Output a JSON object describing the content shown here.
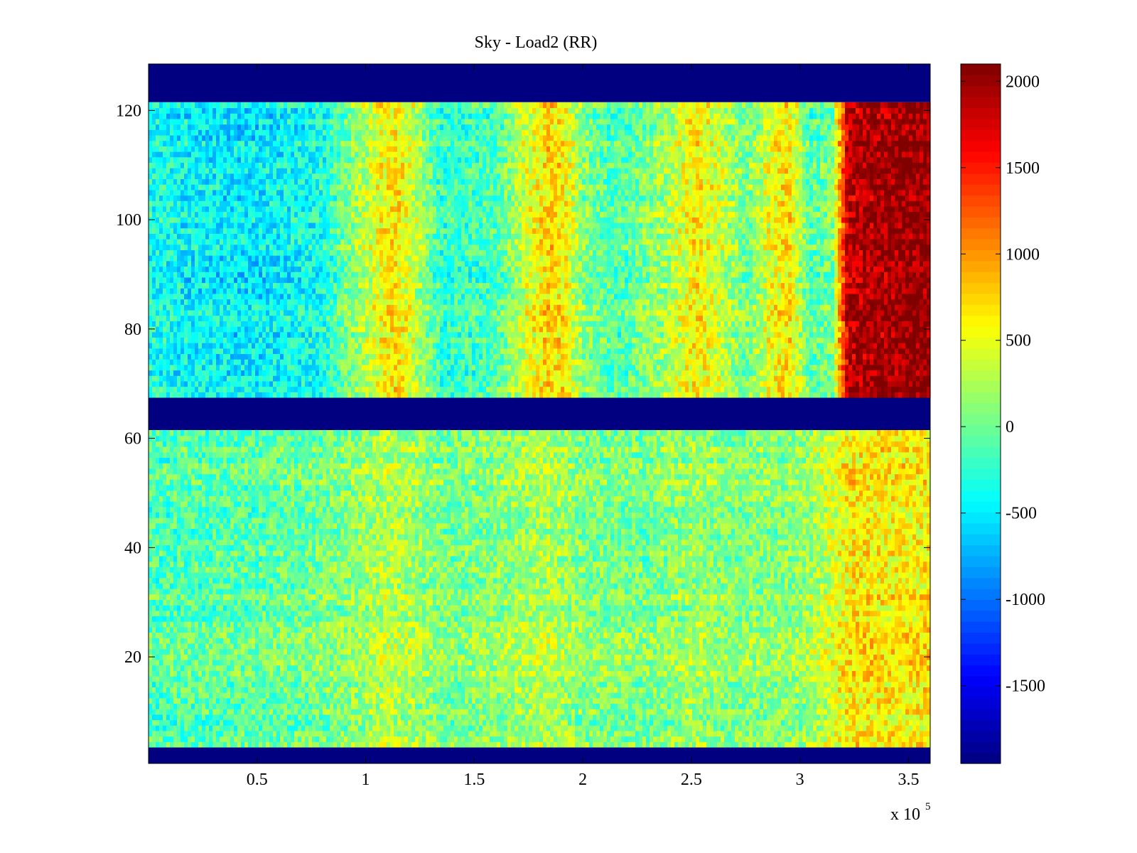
{
  "chart_data": {
    "type": "heatmap",
    "title": "Sky - Load2 (RR)",
    "xlabel": "",
    "ylabel": "",
    "x_range": [
      0,
      360000
    ],
    "y_range": [
      0.5,
      128.5
    ],
    "x_exponent_label": "x 10",
    "x_exponent_power": "5",
    "x_tick_labels": [
      "0.5",
      "1",
      "1.5",
      "2",
      "2.5",
      "3",
      "3.5"
    ],
    "x_tick_values": [
      50000,
      100000,
      150000,
      200000,
      250000,
      300000,
      350000
    ],
    "y_tick_labels": [
      "20",
      "40",
      "60",
      "80",
      "100",
      "120"
    ],
    "y_tick_values": [
      20,
      40,
      60,
      80,
      100,
      120
    ],
    "colormap": "jet",
    "color_range": [
      -1950,
      2100
    ],
    "colorbar": {
      "position": "right",
      "tick_labels": [
        "2000",
        "1500",
        "1000",
        "500",
        "0",
        "-500",
        "-1000",
        "-1500"
      ],
      "tick_values": [
        2000,
        1500,
        1000,
        500,
        0,
        -500,
        -1000,
        -1500
      ]
    },
    "masked_rows": [
      {
        "from": 121.5,
        "to": 128.5,
        "value": -1950
      },
      {
        "from": 61.5,
        "to": 67.5,
        "value": -1950
      },
      {
        "from": 0.5,
        "to": 3.5,
        "value": -1950
      }
    ],
    "bands": [
      {
        "y_from": 67.5,
        "y_to": 121.5,
        "profile_x": [
          0,
          20000,
          50000,
          80000,
          95000,
          108000,
          115000,
          122000,
          135000,
          160000,
          175000,
          185000,
          192000,
          200000,
          215000,
          240000,
          252000,
          262000,
          275000,
          288000,
          295000,
          305000,
          315000,
          322000,
          335000,
          350000,
          360000
        ],
        "profile_value": [
          -350,
          -450,
          -500,
          -350,
          150,
          550,
          650,
          350,
          -250,
          -150,
          450,
          750,
          600,
          100,
          -150,
          250,
          650,
          400,
          0,
          550,
          650,
          -100,
          50,
          1800,
          1950,
          2000,
          2050
        ]
      },
      {
        "y_from": 3.5,
        "y_to": 61.5,
        "profile_x": [
          0,
          50000,
          90000,
          110000,
          120000,
          140000,
          170000,
          185000,
          200000,
          230000,
          250000,
          270000,
          300000,
          315000,
          325000,
          340000,
          360000
        ],
        "profile_value": [
          -100,
          -50,
          100,
          300,
          250,
          50,
          200,
          300,
          100,
          50,
          200,
          100,
          150,
          450,
          700,
          650,
          650
        ]
      }
    ]
  }
}
